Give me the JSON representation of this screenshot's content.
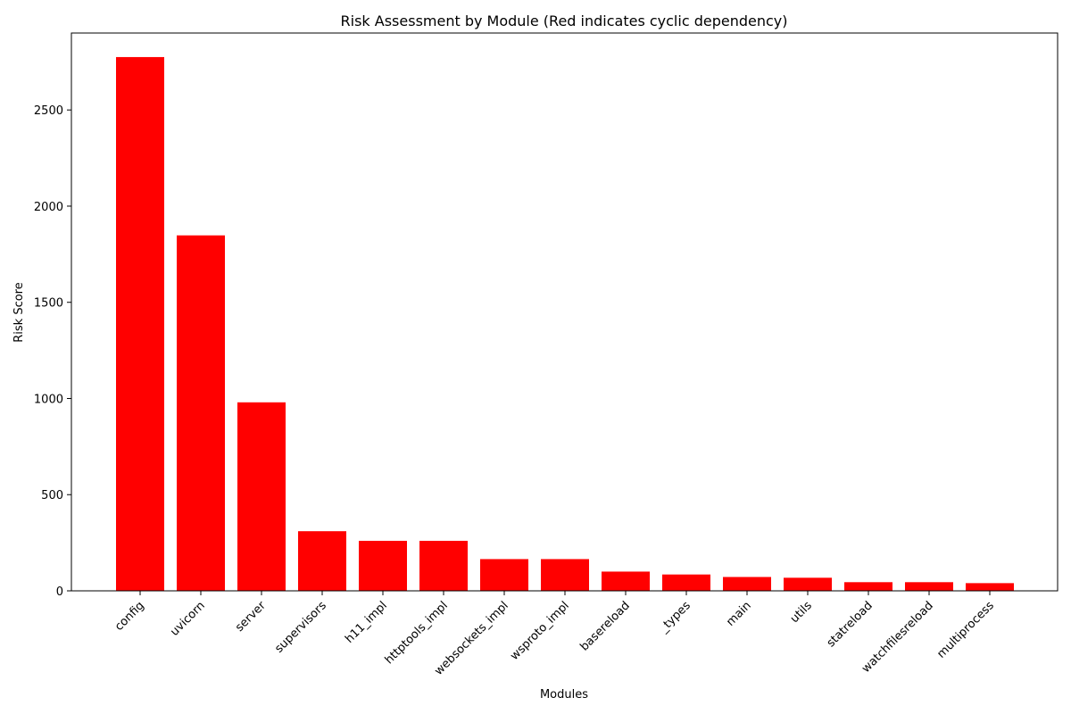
{
  "chart_data": {
    "type": "bar",
    "title": "Risk Assessment by Module (Red indicates cyclic dependency)",
    "xlabel": "Modules",
    "ylabel": "Risk Score",
    "ylim": [
      0,
      2900
    ],
    "yticks": [
      0,
      500,
      1000,
      1500,
      2000,
      2500
    ],
    "grid": false,
    "bar_color": "#ff0000",
    "categories": [
      "config",
      "uvicorn",
      "server",
      "supervisors",
      "h11_impl",
      "httptools_impl",
      "websockets_impl",
      "wsproto_impl",
      "basereload",
      "_types",
      "main",
      "utils",
      "statreload",
      "watchfilesreload",
      "multiprocess"
    ],
    "values": [
      2775,
      1848,
      980,
      310,
      260,
      260,
      165,
      165,
      100,
      85,
      72,
      68,
      45,
      45,
      40
    ]
  }
}
